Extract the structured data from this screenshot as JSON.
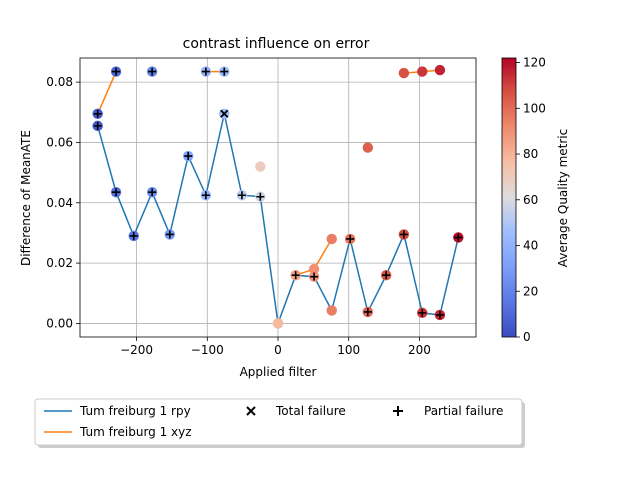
{
  "chart_data": {
    "type": "scatter",
    "title": "contrast influence on error",
    "xlabel": "Applied filter",
    "ylabel": "Difference of MeanATE",
    "xlim": [
      -280,
      280
    ],
    "ylim": [
      -0.0045,
      0.088
    ],
    "xticks": [
      -200,
      -100,
      0,
      100,
      200
    ],
    "xtick_labels": [
      "−200",
      "−100",
      "0",
      "100",
      "200"
    ],
    "yticks": [
      0.0,
      0.02,
      0.04,
      0.06,
      0.08
    ],
    "ytick_labels": [
      "0.00",
      "0.02",
      "0.04",
      "0.06",
      "0.08"
    ],
    "grid": true,
    "colorbar": {
      "label": "Average Quality metric",
      "range": [
        0,
        122
      ],
      "ticks": [
        0,
        20,
        40,
        60,
        80,
        100,
        120
      ],
      "tick_labels": [
        "0",
        "20",
        "40",
        "60",
        "80",
        "100",
        "120"
      ],
      "colormap": "coolwarm"
    },
    "series": [
      {
        "name": "Tum freiburg 1 rpy",
        "color": "#1f77b4",
        "x": [
          -255,
          -229,
          -204,
          -178,
          -153,
          -127,
          -102,
          -76,
          -51,
          -25,
          0,
          25,
          51,
          76,
          102,
          127,
          153,
          178,
          204,
          229,
          255
        ],
        "y": [
          0.0655,
          0.0435,
          0.029,
          0.0435,
          0.0295,
          0.0555,
          0.0425,
          0.0695,
          0.0425,
          0.042,
          0.0,
          0.016,
          0.0155,
          0.0043,
          0.028,
          0.0038,
          0.016,
          0.0295,
          0.0035,
          0.0028,
          0.0285
        ],
        "quality": [
          5,
          12,
          15,
          22,
          28,
          32,
          42,
          45,
          52,
          58,
          78,
          85,
          88,
          95,
          98,
          102,
          105,
          108,
          112,
          116,
          120
        ],
        "markers": [
          "partial",
          "partial",
          "partial",
          "partial",
          "partial",
          "partial",
          "partial",
          "total",
          "partial",
          "partial",
          "none",
          "partial",
          "partial",
          "none",
          "partial",
          "partial",
          "partial",
          "partial",
          "partial",
          "partial",
          "partial"
        ]
      },
      {
        "name": "Tum freiburg 1 xyz",
        "color": "#ff7f0e",
        "x": [
          -255,
          -229,
          -178,
          -102,
          -76,
          -25,
          0,
          25,
          51,
          76,
          127,
          178,
          204,
          229
        ],
        "y": [
          0.0695,
          0.0835,
          0.0835,
          0.0835,
          0.0835,
          0.052,
          0.0,
          0.016,
          0.018,
          0.028,
          0.0583,
          0.083,
          0.0835,
          0.084
        ],
        "quality": [
          5,
          10,
          20,
          40,
          44,
          70,
          78,
          85,
          90,
          95,
          103,
          107,
          112,
          116
        ],
        "markers": [
          "partial",
          "partial",
          "partial",
          "partial",
          "partial",
          "none",
          "none",
          "none",
          "none",
          "none",
          "none",
          "none",
          "none",
          "none"
        ],
        "segments": [
          [
            0,
            1
          ],
          [
            3,
            4
          ],
          [
            7,
            8,
            9
          ],
          [
            11,
            12,
            13
          ]
        ]
      }
    ],
    "legend": {
      "placement": "below-plot",
      "entries": [
        {
          "label": "Tum freiburg 1 rpy",
          "kind": "line",
          "color": "#1f77b4"
        },
        {
          "label": "Tum freiburg 1 xyz",
          "kind": "line",
          "color": "#ff7f0e"
        },
        {
          "label": "Total failure",
          "kind": "marker",
          "symbol": "×"
        },
        {
          "label": "Partial failure",
          "kind": "marker",
          "symbol": "+"
        }
      ]
    }
  }
}
